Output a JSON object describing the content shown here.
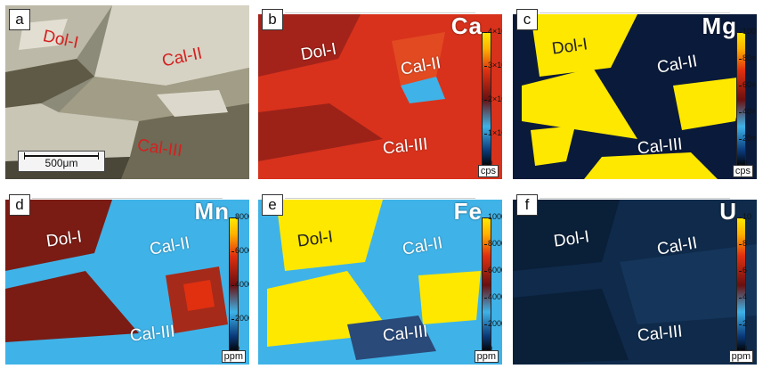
{
  "panels": {
    "a": {
      "letter": "a",
      "labels": [
        "Dol-I",
        "Cal-II",
        "Cal-III"
      ],
      "scale_bar": "500μm"
    },
    "b": {
      "letter": "b",
      "element": "Ca",
      "labels": [
        "Dol-I",
        "Cal-II",
        "Cal-III"
      ],
      "ticks": [
        "4×10⁵",
        "3×10⁵",
        "2×10⁵",
        "1×10⁵",
        "0"
      ],
      "unit": "cps"
    },
    "c": {
      "letter": "c",
      "element": "Mg",
      "labels": [
        "Dol-I",
        "Cal-II",
        "Cal-III"
      ],
      "ticks": [
        "100×10³",
        "80×10³",
        "60×10³",
        "40×10³",
        "20×10³",
        "0"
      ],
      "unit": "cps"
    },
    "d": {
      "letter": "d",
      "element": "Mn",
      "labels": [
        "Dol-I",
        "Cal-II",
        "Cal-III"
      ],
      "ticks": [
        "8000",
        "6000",
        "4000",
        "2000",
        "0"
      ],
      "unit": "ppm"
    },
    "e": {
      "letter": "e",
      "element": "Fe",
      "labels": [
        "Dol-I",
        "Cal-II",
        "Cal-III"
      ],
      "ticks": [
        "10000",
        "8000",
        "6000",
        "4000",
        "2000",
        "0"
      ],
      "unit": "ppm"
    },
    "f": {
      "letter": "f",
      "element": "U",
      "labels": [
        "Dol-I",
        "Cal-II",
        "Cal-III"
      ],
      "ticks": [
        "10",
        "8",
        "6",
        "4",
        "2",
        "0"
      ],
      "unit": "ppm"
    }
  },
  "colors": {
    "colorbar_low": "#0a1a3a",
    "colorbar_mid": "#3fb3e8",
    "colorbar_high": "#ffe800",
    "dol_label_photo": "#d42020"
  }
}
